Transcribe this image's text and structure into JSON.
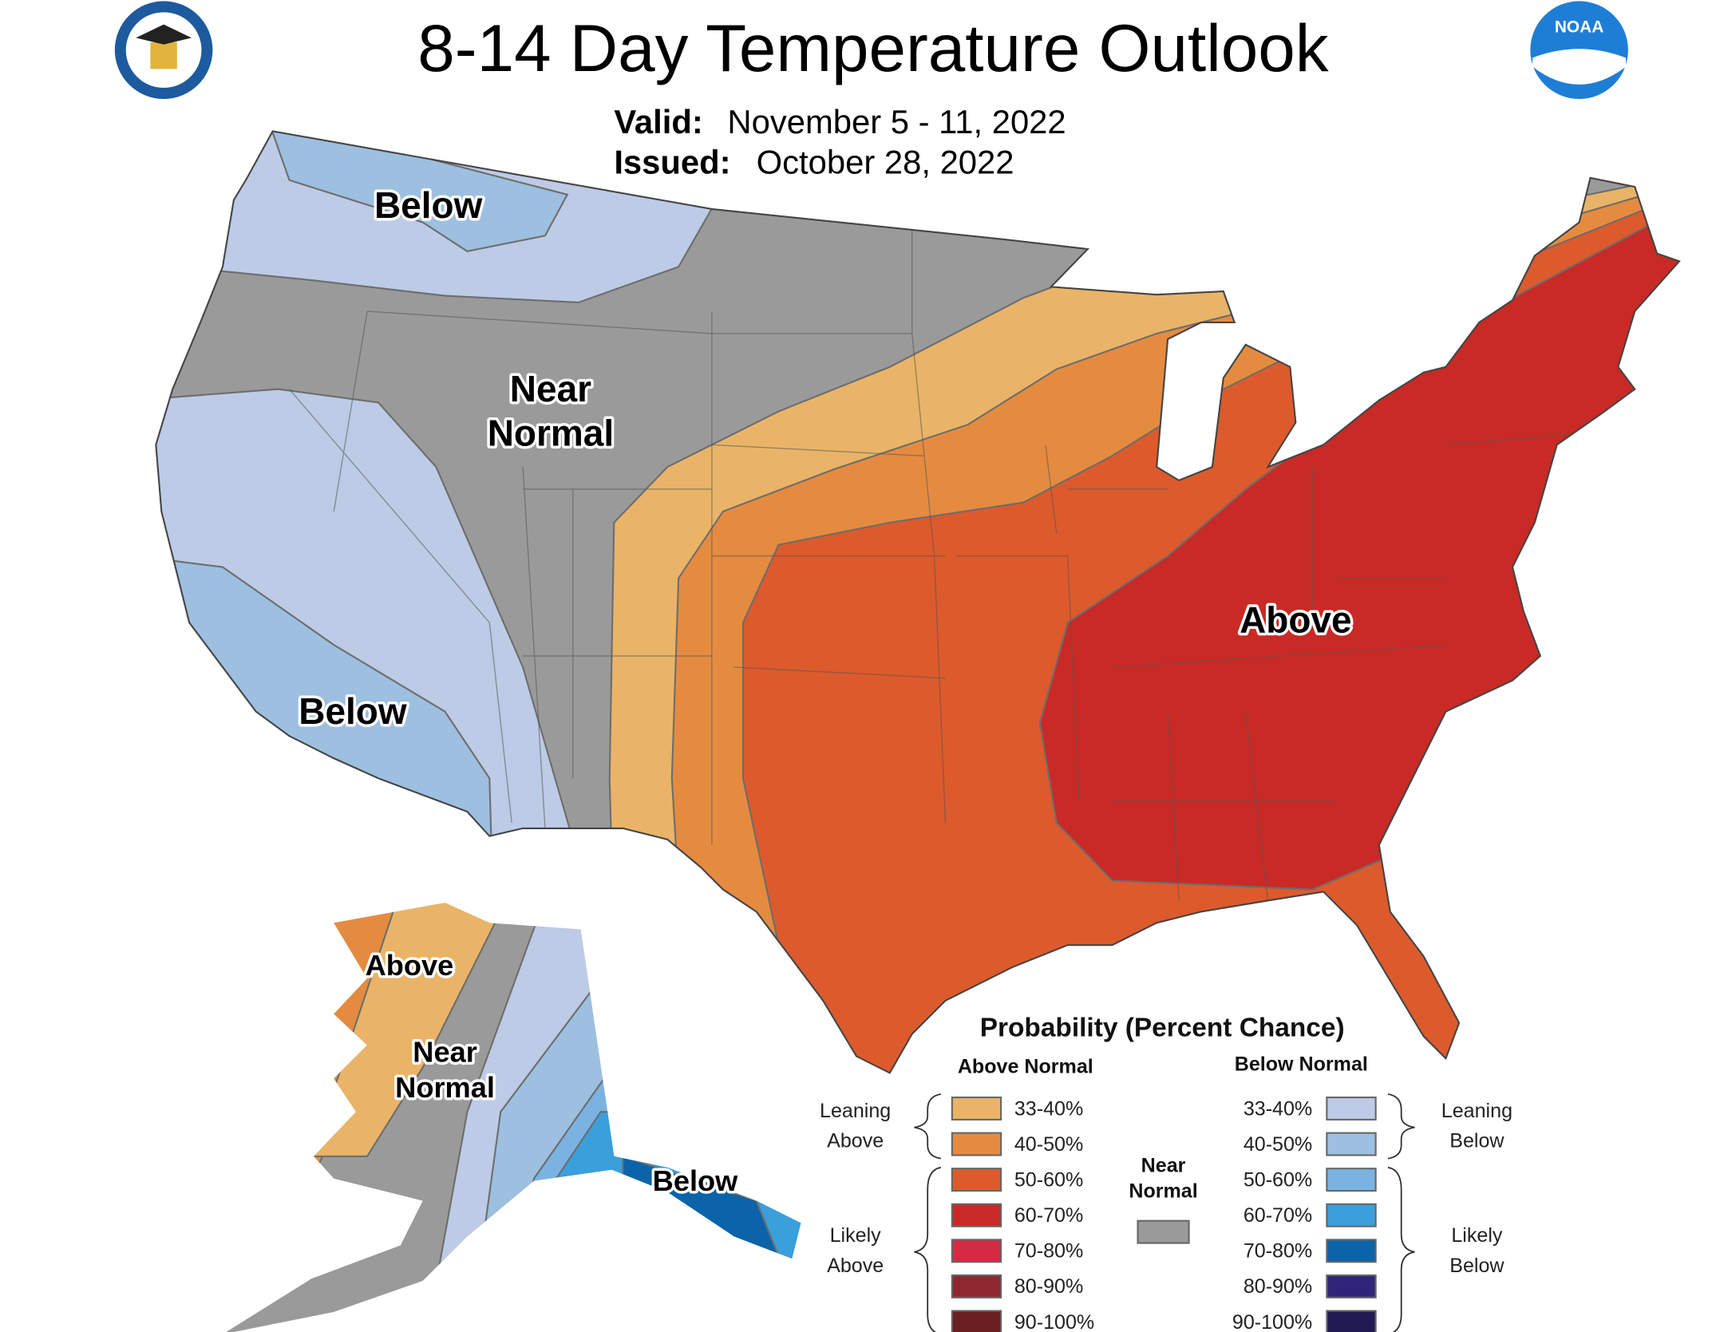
{
  "header": {
    "title": "8-14 Day Temperature Outlook",
    "valid_label": "Valid:",
    "valid_value": "November 5 - 11, 2022",
    "issued_label": "Issued:",
    "issued_value": "October 28, 2022",
    "left_logo": "Department of Commerce seal",
    "right_logo": "NOAA"
  },
  "map_labels": {
    "nw_below": "Below",
    "near_normal_1": "Near",
    "near_normal_2": "Normal",
    "sw_below": "Below",
    "east_above": "Above",
    "ak_above": "Above",
    "ak_near_1": "Near",
    "ak_near_2": "Normal",
    "ak_below": "Below"
  },
  "legend": {
    "title": "Probability (Percent Chance)",
    "above_header": "Above Normal",
    "below_header": "Below Normal",
    "near_normal_1": "Near",
    "near_normal_2": "Normal",
    "near_normal_color": "#9A9A9A",
    "leaning_above": [
      "Leaning",
      "Above"
    ],
    "likely_above": [
      "Likely",
      "Above"
    ],
    "leaning_below": [
      "Leaning",
      "Below"
    ],
    "likely_below": [
      "Likely",
      "Below"
    ],
    "above": [
      {
        "label": "33-40%",
        "color": "#E9B468"
      },
      {
        "label": "40-50%",
        "color": "#E58B40"
      },
      {
        "label": "50-60%",
        "color": "#DD5A2C"
      },
      {
        "label": "60-70%",
        "color": "#C92A25"
      },
      {
        "label": "70-80%",
        "color": "#D42B45"
      },
      {
        "label": "80-90%",
        "color": "#8F2730"
      },
      {
        "label": "90-100%",
        "color": "#6B1F20"
      }
    ],
    "below": [
      {
        "label": "33-40%",
        "color": "#BDCBE6"
      },
      {
        "label": "40-50%",
        "color": "#9DBFE0"
      },
      {
        "label": "50-60%",
        "color": "#7AB3E2"
      },
      {
        "label": "60-70%",
        "color": "#3A9FDA"
      },
      {
        "label": "70-80%",
        "color": "#0B63A8"
      },
      {
        "label": "80-90%",
        "color": "#2E2579"
      },
      {
        "label": "90-100%",
        "color": "#1F1B52"
      }
    ]
  }
}
